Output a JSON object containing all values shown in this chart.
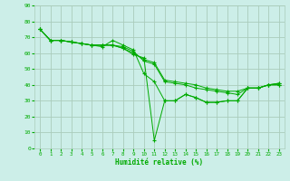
{
  "xlabel": "Humidité relative (%)",
  "ylabel": "",
  "bg_color": "#cceee8",
  "grid_color": "#aaccbb",
  "line_color": "#00aa00",
  "marker": "+",
  "xmin": 0,
  "xmax": 23,
  "ymin": 0,
  "ymax": 90,
  "yticks": [
    0,
    10,
    20,
    30,
    40,
    50,
    60,
    70,
    80,
    90
  ],
  "xticks": [
    0,
    1,
    2,
    3,
    4,
    5,
    6,
    7,
    8,
    9,
    10,
    11,
    12,
    13,
    14,
    15,
    16,
    17,
    18,
    19,
    20,
    21,
    22,
    23
  ],
  "series": [
    [
      75,
      68,
      68,
      67,
      66,
      65,
      64,
      68,
      65,
      62,
      47,
      42,
      30,
      30,
      34,
      32,
      29,
      29,
      30,
      30,
      38,
      38,
      40,
      40
    ],
    [
      75,
      68,
      68,
      67,
      66,
      65,
      65,
      65,
      64,
      61,
      55,
      53,
      42,
      41,
      40,
      38,
      37,
      36,
      35,
      34,
      38,
      38,
      40,
      41
    ],
    [
      75,
      68,
      68,
      67,
      66,
      65,
      65,
      65,
      63,
      60,
      56,
      54,
      43,
      42,
      41,
      40,
      38,
      37,
      36,
      36,
      38,
      38,
      40,
      41
    ],
    [
      75,
      68,
      68,
      67,
      66,
      65,
      65,
      65,
      63,
      59,
      57,
      5,
      30,
      30,
      34,
      32,
      29,
      29,
      30,
      30,
      38,
      38,
      40,
      40
    ]
  ]
}
